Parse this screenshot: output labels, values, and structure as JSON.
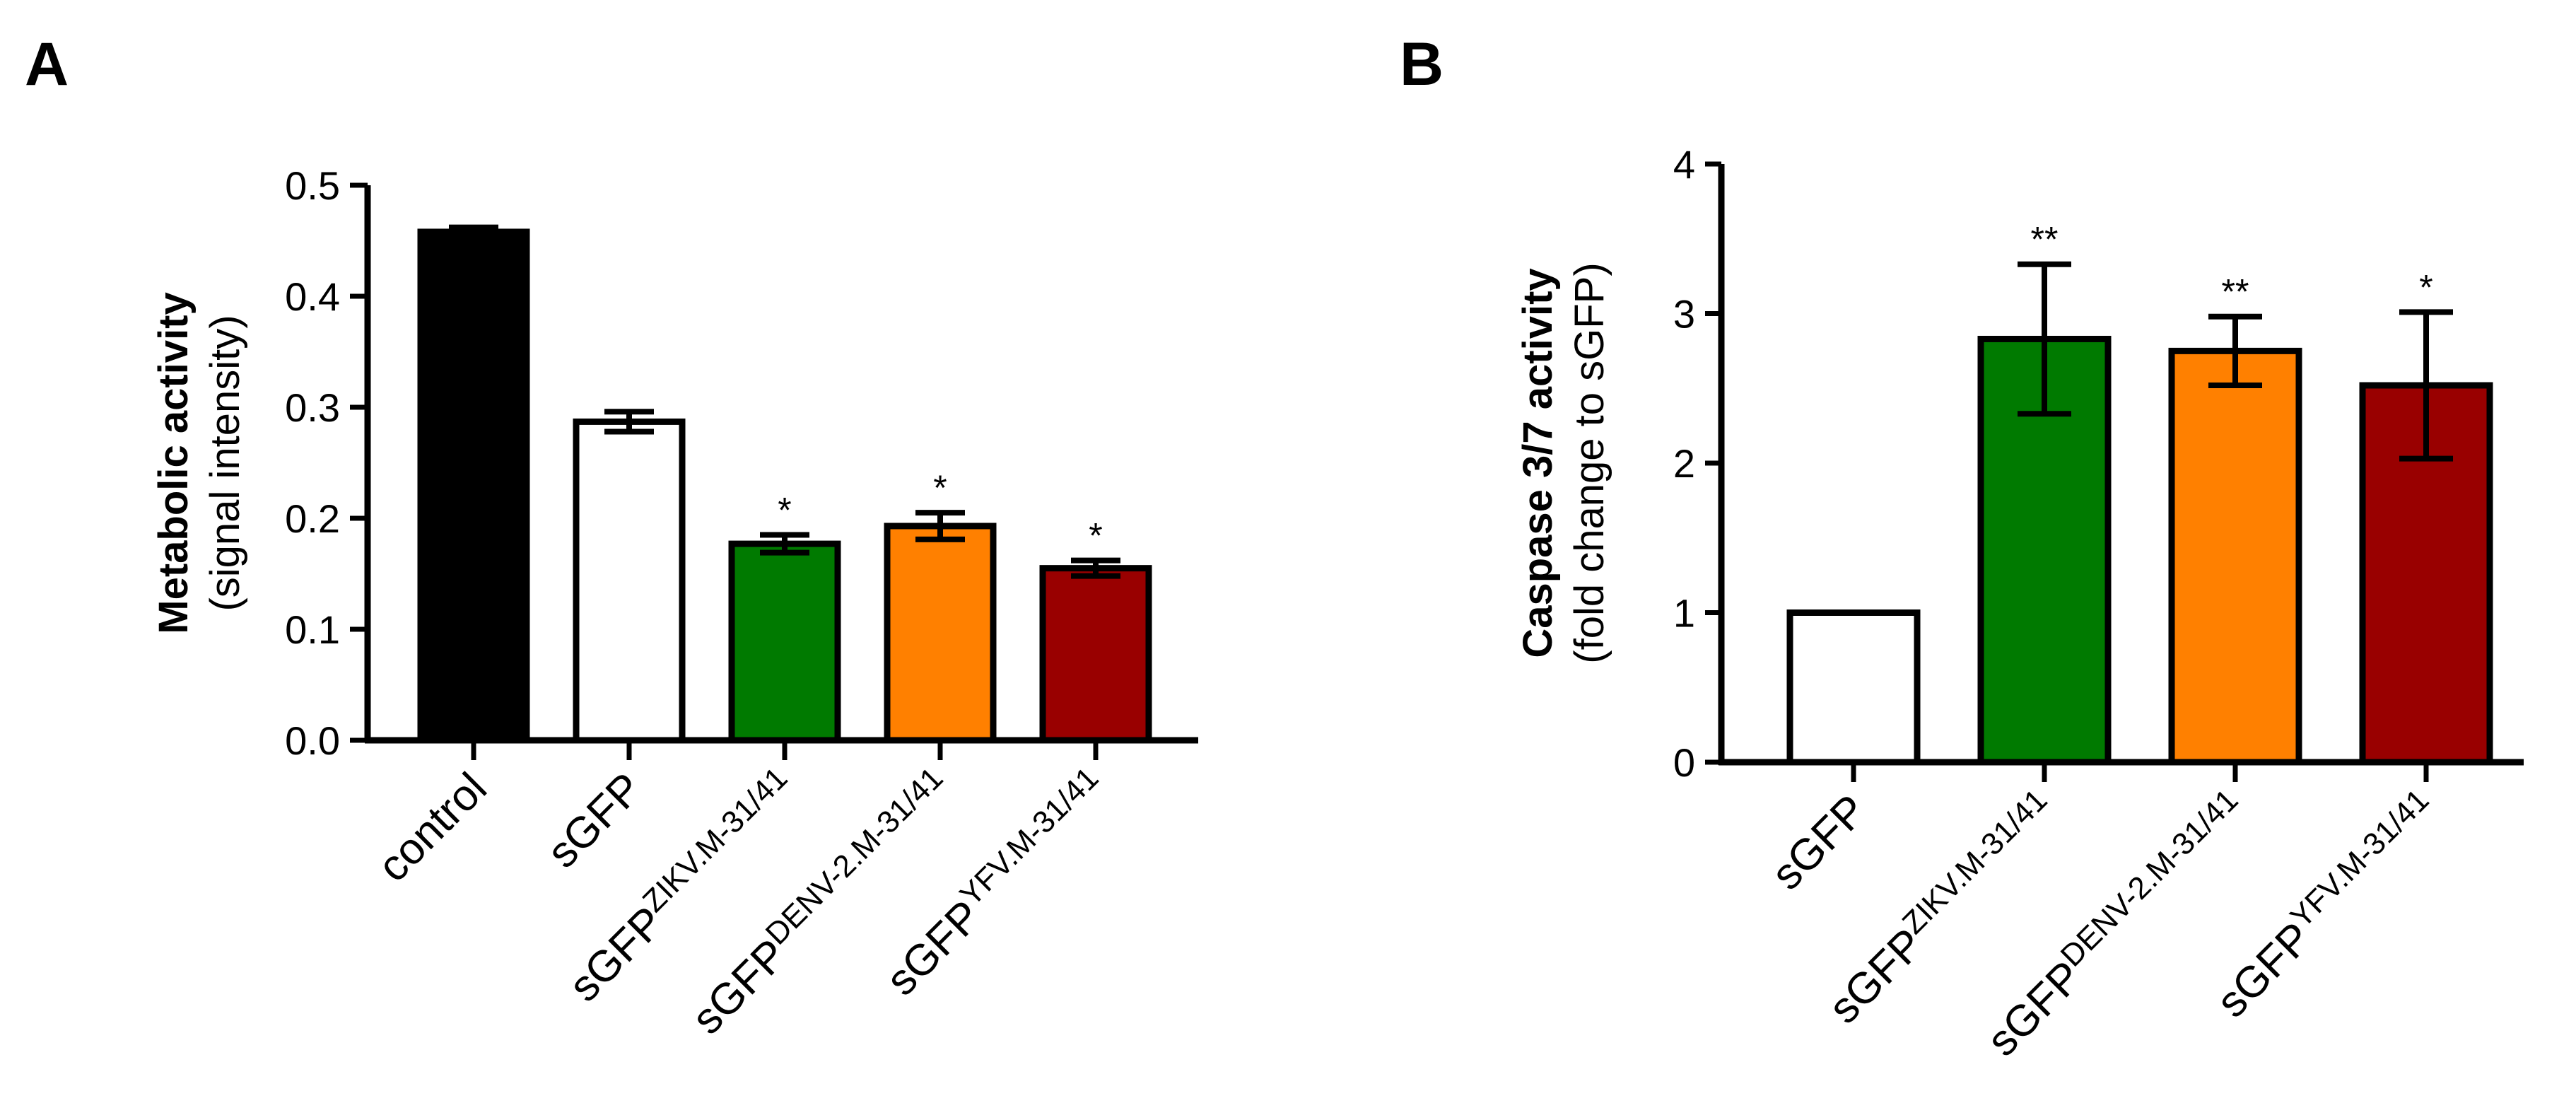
{
  "chart_data": [
    {
      "panel": "A",
      "type": "bar",
      "ylabel": "Metabolic activity",
      "ylabel_sub": "(signal intensity)",
      "ylim": [
        0,
        0.5
      ],
      "yticks": [
        "0.0",
        "0.1",
        "0.2",
        "0.3",
        "0.4",
        "0.5"
      ],
      "ytick_values": [
        0,
        0.1,
        0.2,
        0.3,
        0.4,
        0.5
      ],
      "categories": [
        {
          "main": "control",
          "sup": ""
        },
        {
          "main": "sGFP",
          "sup": ""
        },
        {
          "main": "sGFP",
          "sup": "ZIKV.M-31/41"
        },
        {
          "main": "sGFP",
          "sup": "DENV-2.M-31/41"
        },
        {
          "main": "sGFP",
          "sup": "YFV.M-31/41"
        }
      ],
      "values": [
        0.458,
        0.287,
        0.177,
        0.193,
        0.155
      ],
      "errors": [
        0.004,
        0.009,
        0.008,
        0.012,
        0.007
      ],
      "colors": [
        "#000000",
        "#ffffff",
        "#007a00",
        "#ff8000",
        "#990000"
      ],
      "significance": [
        "",
        "",
        "*",
        "*",
        "*"
      ]
    },
    {
      "panel": "B",
      "type": "bar",
      "ylabel": "Caspase 3/7 activity",
      "ylabel_sub": "(fold change to sGFP)",
      "ylim": [
        0,
        4
      ],
      "yticks": [
        "0",
        "1",
        "2",
        "3",
        "4"
      ],
      "ytick_values": [
        0,
        1,
        2,
        3,
        4
      ],
      "categories": [
        {
          "main": "sGFP",
          "sup": ""
        },
        {
          "main": "sGFP",
          "sup": "ZIKV.M-31/41"
        },
        {
          "main": "sGFP",
          "sup": "DENV-2.M-31/41"
        },
        {
          "main": "sGFP",
          "sup": "YFV.M-31/41"
        }
      ],
      "values": [
        1.0,
        2.83,
        2.75,
        2.52
      ],
      "errors": [
        0,
        0.5,
        0.23,
        0.49
      ],
      "colors": [
        "#ffffff",
        "#007a00",
        "#ff8000",
        "#990000"
      ],
      "significance": [
        "",
        "**",
        "**",
        "*"
      ]
    }
  ]
}
